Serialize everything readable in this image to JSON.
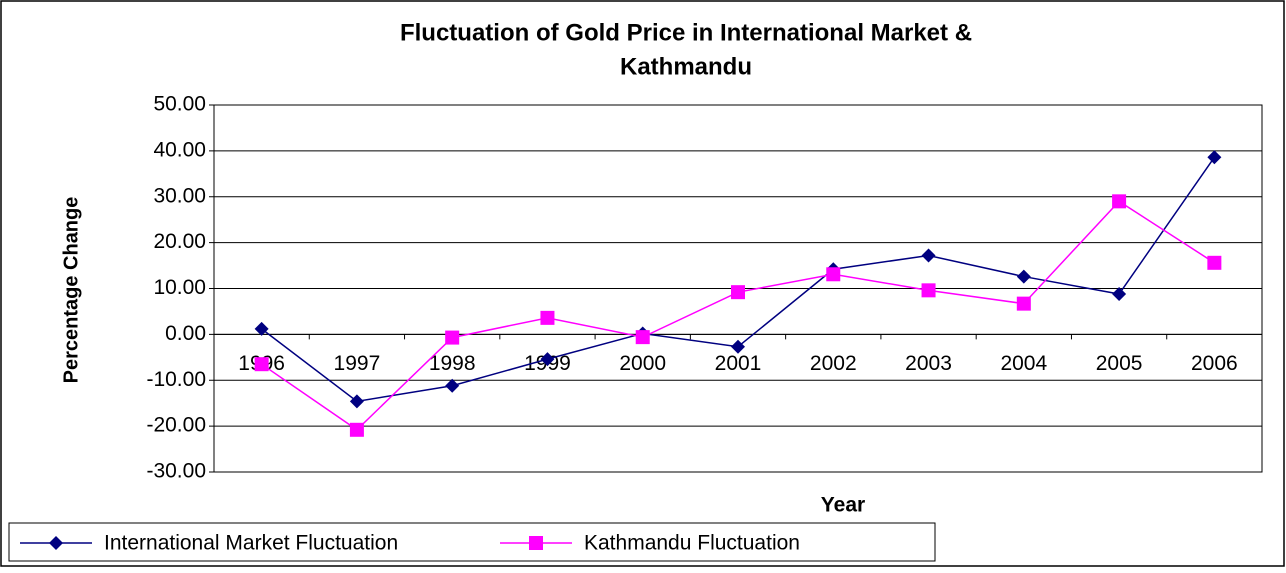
{
  "chart_data": {
    "type": "line",
    "title": "Fluctuation of Gold Price in International Market &",
    "subtitle": "Kathmandu",
    "x_label": "Year",
    "y_label": "Percentage Change",
    "categories": [
      "1996",
      "1997",
      "1998",
      "1999",
      "2000",
      "2001",
      "2002",
      "2003",
      "2004",
      "2005",
      "2006"
    ],
    "series": [
      {
        "name": "International Market Fluctuation",
        "color": "#000080",
        "marker": "diamond",
        "values": [
          1.2,
          -14.6,
          -11.2,
          -5.4,
          0.2,
          -2.7,
          14.2,
          17.2,
          12.6,
          8.8,
          38.6
        ]
      },
      {
        "name": "Kathmandu Fluctuation",
        "color": "#ff00ff",
        "marker": "square",
        "values": [
          -6.5,
          -20.8,
          -0.7,
          3.6,
          -0.6,
          9.2,
          13.1,
          9.6,
          6.7,
          29.0,
          15.6
        ]
      }
    ],
    "ylim": [
      -30,
      50
    ],
    "yticks": [
      {
        "value": -30,
        "label": "-30.00"
      },
      {
        "value": -20,
        "label": "-20.00"
      },
      {
        "value": -10,
        "label": "-10.00"
      },
      {
        "value": 0,
        "label": "0.00"
      },
      {
        "value": 10,
        "label": "10.00"
      },
      {
        "value": 20,
        "label": "20.00"
      },
      {
        "value": 30,
        "label": "30.00"
      },
      {
        "value": 40,
        "label": "40.00"
      },
      {
        "value": 50,
        "label": "50.00"
      }
    ],
    "grid": true,
    "legend": "bottom-left"
  }
}
